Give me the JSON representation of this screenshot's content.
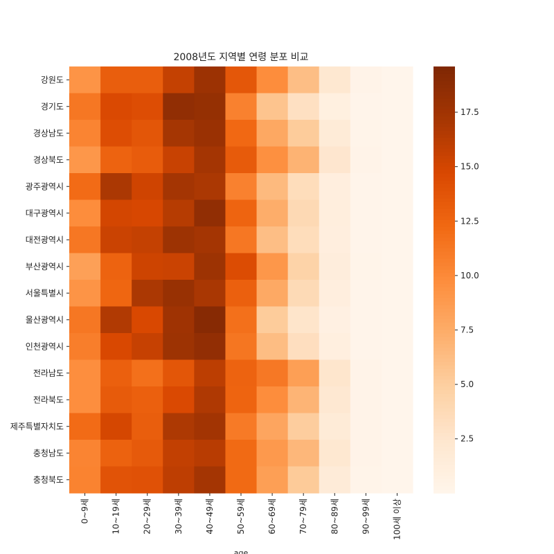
{
  "chart_data": {
    "type": "heatmap",
    "title": "2008년도 지역별 연령 분포 비교",
    "xlabel": "age",
    "ylabel": "",
    "x_categories": [
      "0~9세",
      "10~19세",
      "20~29세",
      "30~39세",
      "40~49세",
      "50~59세",
      "60~69세",
      "70~79세",
      "80~89세",
      "90~99세",
      "100세 이상"
    ],
    "y_categories": [
      "강원도",
      "경기도",
      "경상남도",
      "경상북도",
      "광주광역시",
      "대구광역시",
      "대전광역시",
      "부산광역시",
      "서울특별시",
      "울산광역시",
      "인천광역시",
      "전라남도",
      "전라북도",
      "제주특별자치도",
      "충청남도",
      "충청북도"
    ],
    "values": [
      [
        9.3,
        13.1,
        13.1,
        15.7,
        17.8,
        13.6,
        9.8,
        6.2,
        2.2,
        0.3,
        0.02
      ],
      [
        11.3,
        14.6,
        14.3,
        18.5,
        18.2,
        10.6,
        5.8,
        3.1,
        0.9,
        0.1,
        0.01
      ],
      [
        10.4,
        14.3,
        13.7,
        17.2,
        17.9,
        12.3,
        7.8,
        5.2,
        1.7,
        0.2,
        0.02
      ],
      [
        9.1,
        12.7,
        13.2,
        15.5,
        17.3,
        13.3,
        9.6,
        7.0,
        2.4,
        0.3,
        0.02
      ],
      [
        12.1,
        16.9,
        15.2,
        17.3,
        16.9,
        10.6,
        6.5,
        3.5,
        1.1,
        0.1,
        0.01
      ],
      [
        9.8,
        15.0,
        14.8,
        16.4,
        18.5,
        12.6,
        7.4,
        3.9,
        1.2,
        0.1,
        0.01
      ],
      [
        11.3,
        15.4,
        15.7,
        17.7,
        17.3,
        11.3,
        6.2,
        3.5,
        1.1,
        0.1,
        0.01
      ],
      [
        8.4,
        12.7,
        15.3,
        15.4,
        17.7,
        14.4,
        9.1,
        4.6,
        1.3,
        0.2,
        0.01
      ],
      [
        9.3,
        12.5,
        16.9,
        18.0,
        17.0,
        12.9,
        7.7,
        3.8,
        1.1,
        0.1,
        0.01
      ],
      [
        11.3,
        16.6,
        14.7,
        17.6,
        19.1,
        11.8,
        5.2,
        2.6,
        0.8,
        0.1,
        0.01
      ],
      [
        10.8,
        14.7,
        15.6,
        17.7,
        18.4,
        11.4,
        6.3,
        3.3,
        1.0,
        0.1,
        0.01
      ],
      [
        9.7,
        12.9,
        11.8,
        13.7,
        16.1,
        12.7,
        11.2,
        8.5,
        2.5,
        0.3,
        0.02
      ],
      [
        9.7,
        13.3,
        12.9,
        14.6,
        16.7,
        12.6,
        9.8,
        6.9,
        2.1,
        0.3,
        0.02
      ],
      [
        12.1,
        14.9,
        13.1,
        16.8,
        17.4,
        11.1,
        8.0,
        5.1,
        1.7,
        0.3,
        0.02
      ],
      [
        10.4,
        12.8,
        13.4,
        15.8,
        16.3,
        12.2,
        8.9,
        6.7,
        2.2,
        0.3,
        0.02
      ],
      [
        10.5,
        13.9,
        14.0,
        16.0,
        17.3,
        12.2,
        8.5,
        5.3,
        1.6,
        0.2,
        0.02
      ]
    ],
    "colorbar": {
      "colormap": "Oranges",
      "range": [
        0.01,
        19.6
      ],
      "ticks": [
        2.5,
        5.0,
        7.5,
        10.0,
        12.5,
        15.0,
        17.5
      ],
      "tick_labels": [
        "2.5",
        "5.0",
        "7.5",
        "10.0",
        "12.5",
        "15.0",
        "17.5"
      ]
    },
    "grid": false,
    "legend": "colorbar-right"
  }
}
